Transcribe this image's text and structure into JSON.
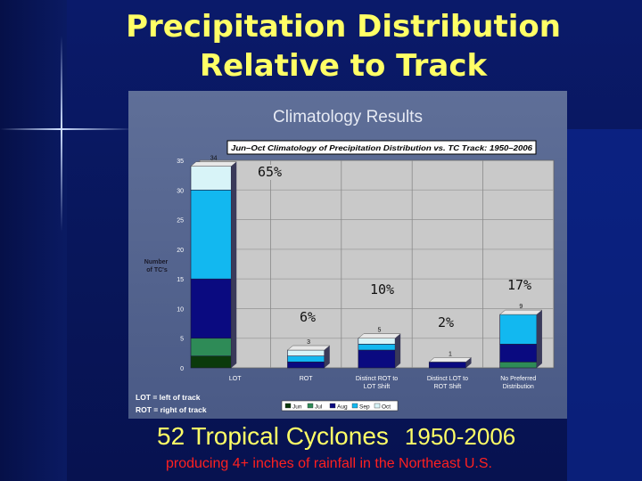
{
  "slide": {
    "title_lines": [
      "Precipitation Distribution",
      "Relative to Track"
    ],
    "subtitle": "52 Tropical Cyclones",
    "subtitle_years": "1950-2006",
    "caption": "producing 4+ inches of rainfall in the Northeast U.S."
  },
  "chart_data": {
    "type": "bar",
    "stacked": true,
    "header": "Climatology Results",
    "title": "Jun–Oct Climatology of Precipitation Distribution vs. TC Track: 1950–2006",
    "ylabel": "Number of TC's",
    "ylim": [
      0,
      35
    ],
    "yticks": [
      0,
      5,
      10,
      15,
      20,
      25,
      30,
      35
    ],
    "grid": true,
    "legend_position": "bottom",
    "categories": [
      "LOT",
      "ROT",
      "Distinct ROT to LOT Shift",
      "Distinct LOT to ROT Shift",
      "No Preferred Distribution"
    ],
    "totals": [
      34,
      3,
      5,
      1,
      9
    ],
    "percent_labels": [
      "65%",
      "6%",
      "10%",
      "2%",
      "17%"
    ],
    "notes": [
      "LOT = left of track",
      "ROT = right of track"
    ],
    "series": [
      {
        "name": "Jun",
        "color": "#0b3a0b",
        "values": [
          2,
          0,
          0,
          0,
          0
        ]
      },
      {
        "name": "Jul",
        "color": "#2e8b57",
        "values": [
          3,
          0,
          0,
          0,
          1
        ]
      },
      {
        "name": "Aug",
        "color": "#0a0a80",
        "values": [
          10,
          1,
          3,
          1,
          3
        ]
      },
      {
        "name": "Sep",
        "color": "#12b8f0",
        "values": [
          15,
          1,
          1,
          0,
          5
        ]
      },
      {
        "name": "Oct",
        "color": "#d8f4f8",
        "values": [
          4,
          1,
          1,
          0,
          0
        ]
      }
    ]
  }
}
